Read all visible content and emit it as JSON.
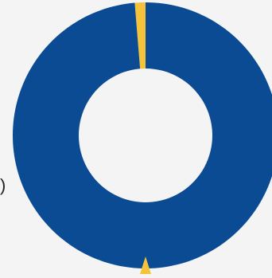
{
  "chart_data": {
    "type": "pie",
    "variant": "donut",
    "slices": [
      {
        "value": 98.7,
        "color": "#0a4b94"
      },
      {
        "value": 1.3,
        "color": "#f5c33b"
      }
    ],
    "second_marker_color": "#f5c33b"
  },
  "visible_text": {
    "left_fragment": ")"
  }
}
